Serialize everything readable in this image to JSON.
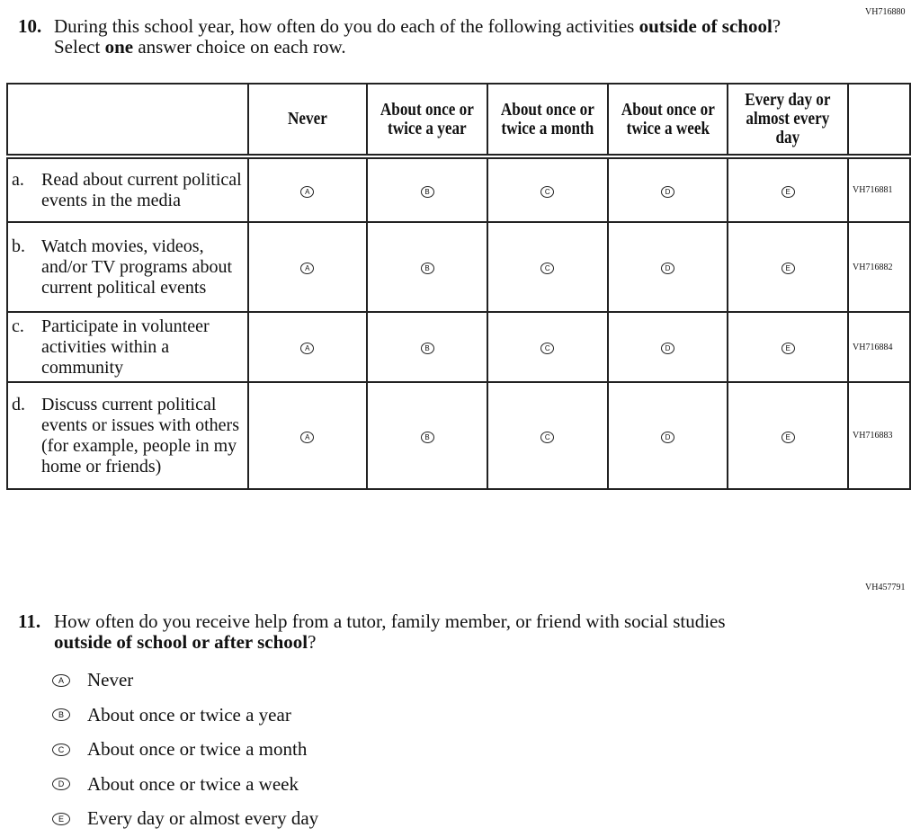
{
  "q10": {
    "code": "VH716880",
    "number": "10.",
    "text_parts": [
      "During this school year, how often do you do each of the following activities ",
      "outside of school",
      "? Select ",
      "one",
      " answer choice on each row."
    ],
    "columns": [
      "Never",
      "About once or twice a year",
      "About once or twice a month",
      "About once or twice a week",
      "Every day or almost every day"
    ],
    "bubbles": [
      "A",
      "B",
      "C",
      "D",
      "E"
    ],
    "rows": [
      {
        "letter": "a.",
        "text": "Read about current political events in the media",
        "code": "VH716881"
      },
      {
        "letter": "b.",
        "text": "Watch movies, videos, and/or TV programs about current political events",
        "code": "VH716882"
      },
      {
        "letter": "c.",
        "text": "Participate in volunteer activities within a community",
        "code": "VH716884"
      },
      {
        "letter": "d.",
        "text": "Discuss current political events or issues with others (for example, people in my home or friends)",
        "code": "VH716883"
      }
    ]
  },
  "q11": {
    "code": "VH457791",
    "number": "11.",
    "text_parts": [
      "How often do you receive help from a tutor, family member, or friend with social studies ",
      "outside of school or after school",
      "?"
    ],
    "options": [
      {
        "bubble": "A",
        "label": "Never"
      },
      {
        "bubble": "B",
        "label": "About once or twice a year"
      },
      {
        "bubble": "C",
        "label": "About once or twice a month"
      },
      {
        "bubble": "D",
        "label": "About once or twice a week"
      },
      {
        "bubble": "E",
        "label": "Every day or almost every day"
      }
    ]
  }
}
